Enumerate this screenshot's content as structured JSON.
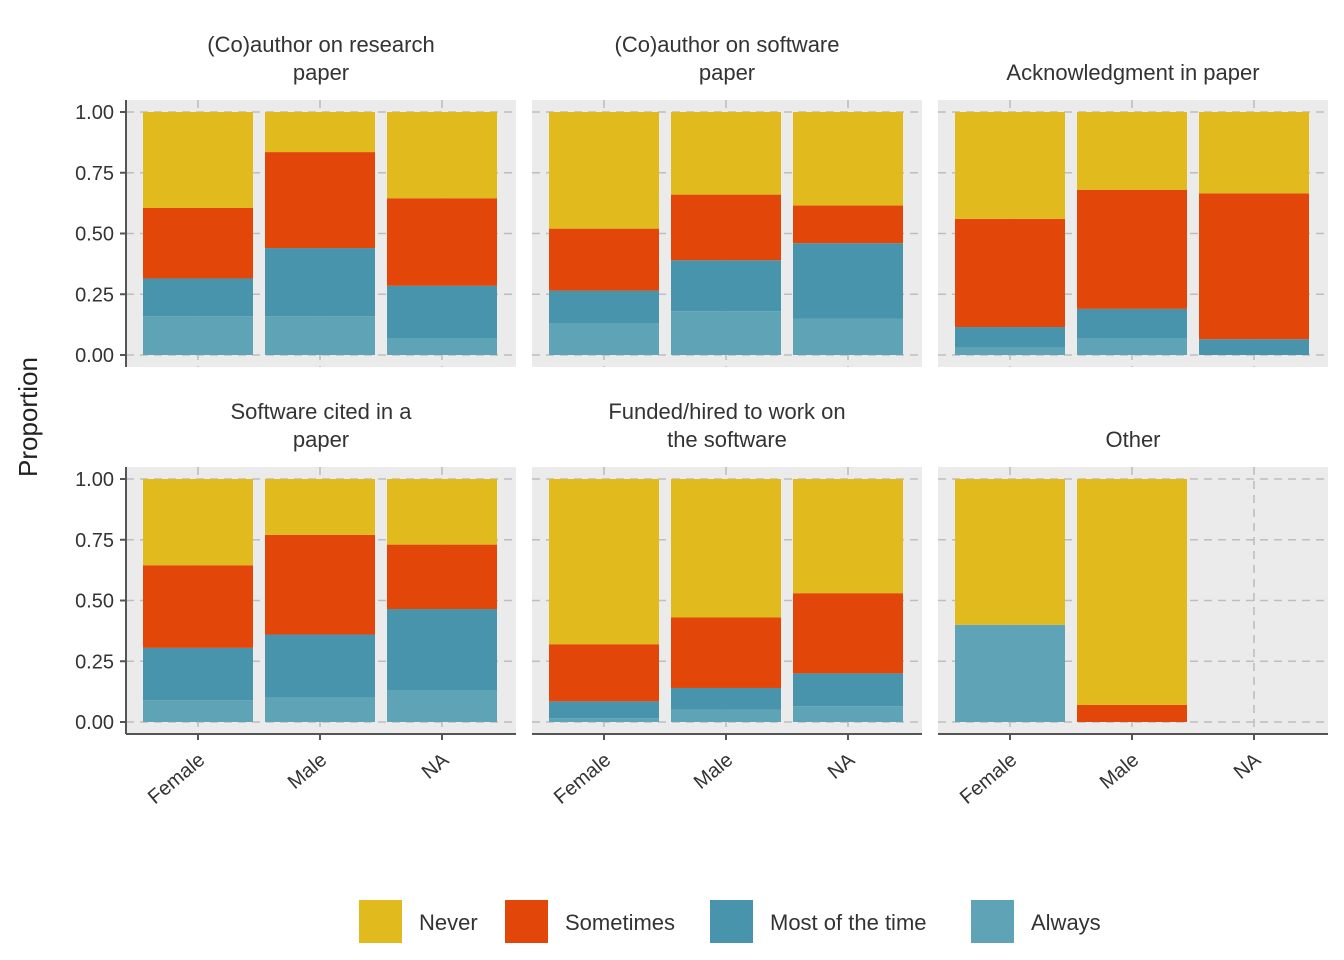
{
  "chart_data": {
    "type": "bar",
    "stacked": true,
    "ylabel": "Proportion",
    "ylim": [
      0,
      1
    ],
    "y_ticks": [
      "0.00",
      "0.25",
      "0.50",
      "0.75",
      "1.00"
    ],
    "grid": true,
    "legend_position": "bottom",
    "categories": [
      "Female",
      "Male",
      "NA"
    ],
    "series_order": [
      "Always",
      "Most of the time",
      "Sometimes",
      "Never"
    ],
    "legend": [
      {
        "name": "Never",
        "color": "#E1BB1D"
      },
      {
        "name": "Sometimes",
        "color": "#E24608"
      },
      {
        "name": "Most of the time",
        "color": "#4894AC"
      },
      {
        "name": "Always",
        "color": "#5FA4B6"
      }
    ],
    "panels": [
      {
        "title_lines": [
          "(Co)author on research",
          "paper"
        ],
        "bars": [
          {
            "category": "Female",
            "Always": 0.16,
            "Most of the time": 0.155,
            "Sometimes": 0.29,
            "Never": 0.395
          },
          {
            "category": "Male",
            "Always": 0.16,
            "Most of the time": 0.28,
            "Sometimes": 0.395,
            "Never": 0.165
          },
          {
            "category": "NA",
            "Always": 0.07,
            "Most of the time": 0.215,
            "Sometimes": 0.36,
            "Never": 0.355
          }
        ]
      },
      {
        "title_lines": [
          "(Co)author on software",
          "paper"
        ],
        "bars": [
          {
            "category": "Female",
            "Always": 0.13,
            "Most of the time": 0.135,
            "Sometimes": 0.255,
            "Never": 0.48
          },
          {
            "category": "Male",
            "Always": 0.18,
            "Most of the time": 0.21,
            "Sometimes": 0.27,
            "Never": 0.34
          },
          {
            "category": "NA",
            "Always": 0.15,
            "Most of the time": 0.31,
            "Sometimes": 0.155,
            "Never": 0.385
          }
        ]
      },
      {
        "title_lines": [
          "Acknowledgment in paper"
        ],
        "bars": [
          {
            "category": "Female",
            "Always": 0.03,
            "Most of the time": 0.085,
            "Sometimes": 0.445,
            "Never": 0.44
          },
          {
            "category": "Male",
            "Always": 0.07,
            "Most of the time": 0.12,
            "Sometimes": 0.49,
            "Never": 0.32
          },
          {
            "category": "NA",
            "Always": 0.0,
            "Most of the time": 0.065,
            "Sometimes": 0.6,
            "Never": 0.335
          }
        ]
      },
      {
        "title_lines": [
          "Software cited in a",
          "paper"
        ],
        "bars": [
          {
            "category": "Female",
            "Always": 0.09,
            "Most of the time": 0.215,
            "Sometimes": 0.34,
            "Never": 0.355
          },
          {
            "category": "Male",
            "Always": 0.1,
            "Most of the time": 0.26,
            "Sometimes": 0.41,
            "Never": 0.23
          },
          {
            "category": "NA",
            "Always": 0.13,
            "Most of the time": 0.335,
            "Sometimes": 0.265,
            "Never": 0.27
          }
        ]
      },
      {
        "title_lines": [
          "Funded/hired to work on",
          "the software"
        ],
        "bars": [
          {
            "category": "Female",
            "Always": 0.015,
            "Most of the time": 0.07,
            "Sometimes": 0.235,
            "Never": 0.68
          },
          {
            "category": "Male",
            "Always": 0.05,
            "Most of the time": 0.09,
            "Sometimes": 0.29,
            "Never": 0.57
          },
          {
            "category": "NA",
            "Always": 0.065,
            "Most of the time": 0.135,
            "Sometimes": 0.33,
            "Never": 0.47
          }
        ]
      },
      {
        "title_lines": [
          "Other"
        ],
        "bars": [
          {
            "category": "Female",
            "Always": 0.4,
            "Most of the time": 0.0,
            "Sometimes": 0.0,
            "Never": 0.6
          },
          {
            "category": "Male",
            "Always": 0.0,
            "Most of the time": 0.0,
            "Sometimes": 0.07,
            "Never": 0.93
          }
        ]
      }
    ]
  }
}
